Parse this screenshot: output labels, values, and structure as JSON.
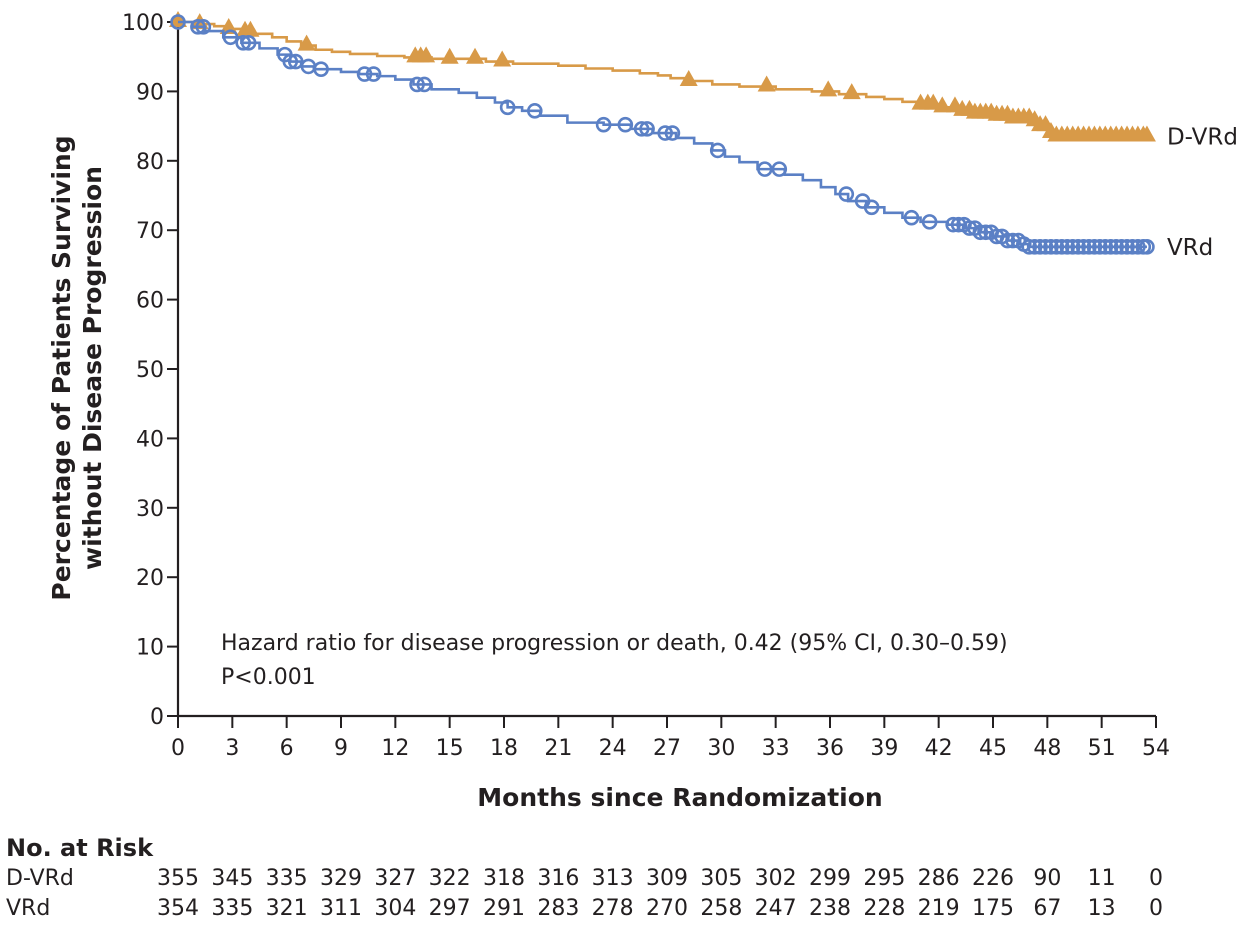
{
  "chart_data": {
    "type": "line",
    "subtype": "kaplan-meier",
    "title": "",
    "xlabel": "Months since Randomization",
    "ylabel": "Percentage of Patients Surviving without Disease Progression",
    "ylabel_lines": [
      "Percentage of Patients Surviving",
      "without Disease Progression"
    ],
    "xlim": [
      0,
      54
    ],
    "ylim": [
      0,
      100
    ],
    "x_ticks": [
      0,
      3,
      6,
      9,
      12,
      15,
      18,
      21,
      24,
      27,
      30,
      33,
      36,
      39,
      42,
      45,
      48,
      51,
      54
    ],
    "y_ticks": [
      0,
      10,
      20,
      30,
      40,
      50,
      60,
      70,
      80,
      90,
      100
    ],
    "grid": false,
    "legend": "inline-right",
    "annotations": [
      "Hazard ratio for disease progression or death, 0.42 (95% CI, 0.30–0.59)",
      "P<0.001"
    ],
    "series": [
      {
        "name": "D-VRd",
        "color": "#d89a48",
        "marker": "triangle",
        "steps": [
          [
            0,
            100
          ],
          [
            1.0,
            99.7
          ],
          [
            2.0,
            99.4
          ],
          [
            2.8,
            99.0
          ],
          [
            3.5,
            98.6
          ],
          [
            4.2,
            98.3
          ],
          [
            5.2,
            97.8
          ],
          [
            6.0,
            97.2
          ],
          [
            6.8,
            96.6
          ],
          [
            7.6,
            96.0
          ],
          [
            8.5,
            95.7
          ],
          [
            9.5,
            95.4
          ],
          [
            11.0,
            95.1
          ],
          [
            12.5,
            94.9
          ],
          [
            14.0,
            94.7
          ],
          [
            17.0,
            94.3
          ],
          [
            18.5,
            94.0
          ],
          [
            21.0,
            93.7
          ],
          [
            22.5,
            93.3
          ],
          [
            24.0,
            93.0
          ],
          [
            25.5,
            92.6
          ],
          [
            26.5,
            92.3
          ],
          [
            27.2,
            91.9
          ],
          [
            28.0,
            91.5
          ],
          [
            29.5,
            91.0
          ],
          [
            31.0,
            90.7
          ],
          [
            33.0,
            90.3
          ],
          [
            35.0,
            90.0
          ],
          [
            36.5,
            89.6
          ],
          [
            38.0,
            89.2
          ],
          [
            39.0,
            88.9
          ],
          [
            40.0,
            88.5
          ],
          [
            41.0,
            88.1
          ],
          [
            42.0,
            87.7
          ],
          [
            43.0,
            87.2
          ],
          [
            44.0,
            86.8
          ],
          [
            45.0,
            86.5
          ],
          [
            46.0,
            86.1
          ],
          [
            47.2,
            85.7
          ],
          [
            47.6,
            85.0
          ],
          [
            48.0,
            84.0
          ],
          [
            48.3,
            83.5
          ],
          [
            53.5,
            83.5
          ]
        ],
        "censor_times": [
          0,
          1.2,
          2.8,
          3.7,
          4.0,
          7.1,
          13.1,
          13.4,
          13.7,
          15.0,
          16.4,
          17.9,
          28.2,
          32.5,
          35.9,
          37.2,
          41.0,
          41.4,
          41.7,
          42.2,
          42.9,
          43.3,
          43.7,
          44.0,
          44.3,
          44.6,
          44.9,
          45.2,
          45.5,
          45.8,
          46.1,
          46.4,
          46.7,
          47.0,
          47.3,
          47.6,
          47.9,
          48.2,
          48.5,
          48.8,
          49.1,
          49.4,
          49.7,
          50.0,
          50.3,
          50.6,
          50.9,
          51.2,
          51.5,
          51.8,
          52.1,
          52.4,
          52.7,
          53.0,
          53.3,
          53.5
        ]
      },
      {
        "name": "VRd",
        "color": "#5b80c5",
        "marker": "open-circle",
        "steps": [
          [
            0,
            100
          ],
          [
            0.8,
            99.3
          ],
          [
            1.5,
            98.7
          ],
          [
            2.5,
            97.8
          ],
          [
            3.5,
            97.0
          ],
          [
            4.5,
            96.2
          ],
          [
            5.5,
            95.3
          ],
          [
            6.2,
            94.3
          ],
          [
            6.8,
            93.6
          ],
          [
            7.5,
            93.2
          ],
          [
            9.0,
            92.8
          ],
          [
            10.0,
            92.5
          ],
          [
            11.0,
            92.2
          ],
          [
            12.0,
            91.7
          ],
          [
            13.0,
            91.0
          ],
          [
            14.0,
            90.3
          ],
          [
            15.5,
            89.8
          ],
          [
            16.5,
            89.1
          ],
          [
            17.5,
            88.4
          ],
          [
            18.2,
            87.7
          ],
          [
            19.0,
            87.2
          ],
          [
            20.0,
            86.5
          ],
          [
            21.5,
            85.5
          ],
          [
            23.5,
            85.2
          ],
          [
            25.0,
            84.6
          ],
          [
            26.2,
            84.0
          ],
          [
            27.5,
            83.3
          ],
          [
            28.5,
            82.5
          ],
          [
            29.5,
            81.5
          ],
          [
            30.2,
            80.6
          ],
          [
            31.0,
            79.8
          ],
          [
            32.0,
            78.8
          ],
          [
            33.5,
            78.0
          ],
          [
            34.5,
            77.2
          ],
          [
            35.5,
            76.2
          ],
          [
            36.3,
            75.2
          ],
          [
            37.0,
            74.2
          ],
          [
            38.0,
            73.3
          ],
          [
            39.0,
            72.5
          ],
          [
            40.0,
            71.8
          ],
          [
            41.0,
            71.2
          ],
          [
            42.5,
            70.8
          ],
          [
            43.5,
            70.3
          ],
          [
            44.2,
            69.7
          ],
          [
            45.0,
            69.1
          ],
          [
            45.8,
            68.5
          ],
          [
            46.5,
            68.0
          ],
          [
            47.0,
            67.6
          ],
          [
            53.5,
            67.6
          ]
        ],
        "censor_times": [
          0,
          1.1,
          1.4,
          2.9,
          3.6,
          3.9,
          5.9,
          6.2,
          6.5,
          7.2,
          7.9,
          10.3,
          10.8,
          13.2,
          13.6,
          18.2,
          19.7,
          23.5,
          24.7,
          25.6,
          25.9,
          26.9,
          27.3,
          29.8,
          32.4,
          33.2,
          36.9,
          37.8,
          38.3,
          40.5,
          41.5,
          42.8,
          43.1,
          43.4,
          43.7,
          44.0,
          44.3,
          44.6,
          44.9,
          45.2,
          45.5,
          45.8,
          46.1,
          46.4,
          46.7,
          47.0,
          47.3,
          47.6,
          47.9,
          48.2,
          48.5,
          48.8,
          49.1,
          49.4,
          49.7,
          50.0,
          50.3,
          50.6,
          50.9,
          51.2,
          51.5,
          51.8,
          52.1,
          52.4,
          52.7,
          53.0,
          53.3,
          53.5
        ]
      }
    ],
    "risk_table": {
      "title": "No. at Risk",
      "times": [
        0,
        3,
        6,
        9,
        12,
        15,
        18,
        21,
        24,
        27,
        30,
        33,
        36,
        39,
        42,
        45,
        48,
        51,
        54
      ],
      "rows": [
        {
          "name": "D-VRd",
          "values": [
            355,
            345,
            335,
            329,
            327,
            322,
            318,
            316,
            313,
            309,
            305,
            302,
            299,
            295,
            286,
            226,
            90,
            11,
            0
          ]
        },
        {
          "name": "VRd",
          "values": [
            354,
            335,
            321,
            311,
            304,
            297,
            291,
            283,
            278,
            270,
            258,
            247,
            238,
            228,
            219,
            175,
            67,
            13,
            0
          ]
        }
      ]
    }
  }
}
